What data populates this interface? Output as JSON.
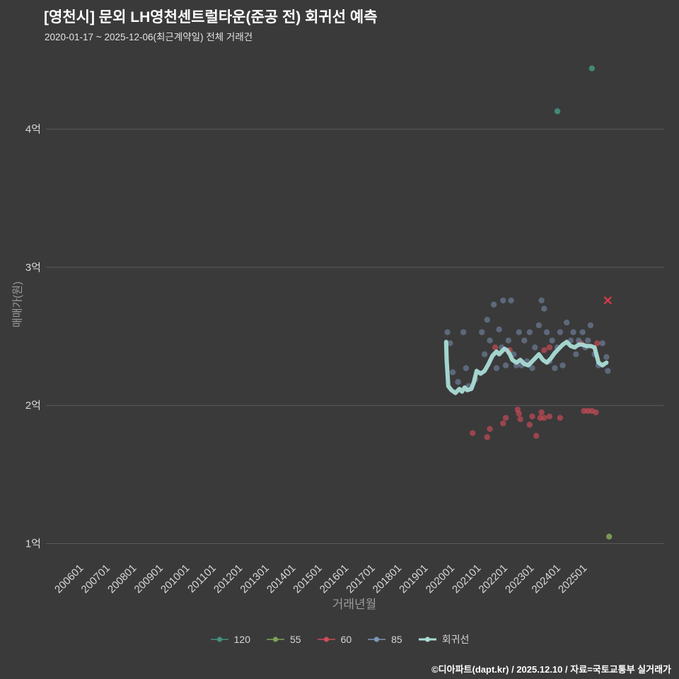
{
  "header": {
    "title": "[영천시] 문외 LH영천센트럴타운(준공 전) 회귀선 예측",
    "subtitle": "2020-01-17 ~ 2025-12-06(최근계약일) 전체 거래건"
  },
  "footer": {
    "credit": "©디아파트(dapt.kr) / 2025.12.10 / 자료=국토교통부 실거래가"
  },
  "colors": {
    "background": "#3a3a3a",
    "grid": "#5a5a5a",
    "tick_label": "#d9d9d9",
    "axis_label": "#9b9b9b",
    "title_text": "#ffffff"
  },
  "chart_data": {
    "type": "scatter",
    "title": "[영천시] 문외 LH영천센트럴타운(준공 전) 회귀선 예측",
    "xlabel": "거래년월",
    "ylabel": "매매가(원)",
    "y_unit": "억원",
    "xlim": [
      2004.7,
      2028.0
    ],
    "ylim": [
      0.9,
      4.5
    ],
    "grid": "horizontal",
    "legend_position": "bottom-center",
    "y_ticks": [
      {
        "value": 1,
        "label": "1억"
      },
      {
        "value": 2,
        "label": "2억"
      },
      {
        "value": 3,
        "label": "3억"
      },
      {
        "value": 4,
        "label": "4억"
      }
    ],
    "x_ticks": [
      {
        "value": 2006,
        "label": "200601"
      },
      {
        "value": 2007,
        "label": "200701"
      },
      {
        "value": 2008,
        "label": "200801"
      },
      {
        "value": 2009,
        "label": "200901"
      },
      {
        "value": 2010,
        "label": "201001"
      },
      {
        "value": 2011,
        "label": "201101"
      },
      {
        "value": 2012,
        "label": "201201"
      },
      {
        "value": 2013,
        "label": "201301"
      },
      {
        "value": 2014,
        "label": "201401"
      },
      {
        "value": 2015,
        "label": "201501"
      },
      {
        "value": 2016,
        "label": "201601"
      },
      {
        "value": 2017,
        "label": "201701"
      },
      {
        "value": 2018,
        "label": "201801"
      },
      {
        "value": 2019,
        "label": "201901"
      },
      {
        "value": 2020,
        "label": "202001"
      },
      {
        "value": 2021,
        "label": "202101"
      },
      {
        "value": 2022,
        "label": "202201"
      },
      {
        "value": 2023,
        "label": "202301"
      },
      {
        "value": 2024,
        "label": "202401"
      },
      {
        "value": 2025,
        "label": "202501"
      }
    ],
    "series": [
      {
        "name": "120",
        "type": "scatter",
        "color": "#459180",
        "opacity": 0.9,
        "points": [
          [
            2024.0,
            4.13
          ],
          [
            2025.3,
            4.44
          ]
        ]
      },
      {
        "name": "55",
        "type": "scatter",
        "color": "#7ea257",
        "opacity": 0.9,
        "points": [
          [
            2025.95,
            1.05
          ]
        ]
      },
      {
        "name": "60",
        "type": "scatter",
        "color": "#d04b58",
        "opacity": 0.65,
        "points": [
          [
            2020.8,
            1.8
          ],
          [
            2021.35,
            1.77
          ],
          [
            2021.45,
            1.83
          ],
          [
            2021.95,
            1.87
          ],
          [
            2022.05,
            1.91
          ],
          [
            2022.5,
            1.97
          ],
          [
            2022.55,
            1.94
          ],
          [
            2022.6,
            1.9
          ],
          [
            2022.95,
            1.86
          ],
          [
            2023.05,
            1.92
          ],
          [
            2023.2,
            1.78
          ],
          [
            2023.35,
            1.91
          ],
          [
            2023.4,
            1.95
          ],
          [
            2023.5,
            1.91
          ],
          [
            2023.7,
            1.92
          ],
          [
            2024.1,
            1.91
          ],
          [
            2025.0,
            1.96
          ],
          [
            2025.15,
            1.96
          ],
          [
            2025.3,
            1.96
          ],
          [
            2025.45,
            1.95
          ],
          [
            2021.65,
            2.42
          ],
          [
            2022.2,
            2.4
          ],
          [
            2023.5,
            2.4
          ],
          [
            2023.7,
            2.42
          ],
          [
            2024.9,
            2.45
          ],
          [
            2025.5,
            2.45
          ]
        ]
      },
      {
        "name": "85",
        "type": "scatter",
        "color": "#8095bb",
        "opacity": 0.5,
        "points": [
          [
            2019.85,
            2.53
          ],
          [
            2019.95,
            2.45
          ],
          [
            2020.05,
            2.24
          ],
          [
            2020.25,
            2.17
          ],
          [
            2020.45,
            2.53
          ],
          [
            2020.55,
            2.27
          ],
          [
            2020.65,
            2.14
          ],
          [
            2020.9,
            2.19
          ],
          [
            2021.15,
            2.53
          ],
          [
            2021.25,
            2.37
          ],
          [
            2021.35,
            2.62
          ],
          [
            2021.45,
            2.47
          ],
          [
            2021.6,
            2.73
          ],
          [
            2021.7,
            2.27
          ],
          [
            2021.8,
            2.55
          ],
          [
            2021.9,
            2.42
          ],
          [
            2021.95,
            2.76
          ],
          [
            2022.05,
            2.29
          ],
          [
            2022.15,
            2.47
          ],
          [
            2022.25,
            2.76
          ],
          [
            2022.35,
            2.37
          ],
          [
            2022.45,
            2.29
          ],
          [
            2022.55,
            2.53
          ],
          [
            2022.65,
            2.29
          ],
          [
            2022.75,
            2.47
          ],
          [
            2022.85,
            2.32
          ],
          [
            2022.95,
            2.53
          ],
          [
            2023.05,
            2.27
          ],
          [
            2023.15,
            2.42
          ],
          [
            2023.3,
            2.58
          ],
          [
            2023.4,
            2.76
          ],
          [
            2023.5,
            2.7
          ],
          [
            2023.6,
            2.53
          ],
          [
            2023.7,
            2.32
          ],
          [
            2023.8,
            2.47
          ],
          [
            2023.9,
            2.27
          ],
          [
            2024.0,
            2.42
          ],
          [
            2024.1,
            2.53
          ],
          [
            2024.2,
            2.29
          ],
          [
            2024.35,
            2.6
          ],
          [
            2024.5,
            2.47
          ],
          [
            2024.6,
            2.53
          ],
          [
            2024.7,
            2.37
          ],
          [
            2024.8,
            2.47
          ],
          [
            2024.95,
            2.53
          ],
          [
            2025.05,
            2.42
          ],
          [
            2025.15,
            2.47
          ],
          [
            2025.25,
            2.58
          ],
          [
            2025.4,
            2.37
          ],
          [
            2025.55,
            2.29
          ],
          [
            2025.7,
            2.45
          ],
          [
            2025.85,
            2.35
          ],
          [
            2025.9,
            2.25
          ]
        ]
      },
      {
        "name": "회귀선",
        "type": "line",
        "color": "#aadcd6",
        "opacity": 0.95,
        "points": [
          [
            2019.8,
            2.46
          ],
          [
            2019.82,
            2.33
          ],
          [
            2019.88,
            2.14
          ],
          [
            2020.0,
            2.11
          ],
          [
            2020.15,
            2.09
          ],
          [
            2020.3,
            2.12
          ],
          [
            2020.4,
            2.1
          ],
          [
            2020.5,
            2.13
          ],
          [
            2020.6,
            2.11
          ],
          [
            2020.75,
            2.12
          ],
          [
            2020.85,
            2.17
          ],
          [
            2020.95,
            2.25
          ],
          [
            2021.1,
            2.23
          ],
          [
            2021.25,
            2.25
          ],
          [
            2021.4,
            2.3
          ],
          [
            2021.55,
            2.36
          ],
          [
            2021.7,
            2.39
          ],
          [
            2021.8,
            2.37
          ],
          [
            2021.9,
            2.39
          ],
          [
            2022.0,
            2.41
          ],
          [
            2022.1,
            2.4
          ],
          [
            2022.2,
            2.37
          ],
          [
            2022.3,
            2.33
          ],
          [
            2022.45,
            2.31
          ],
          [
            2022.6,
            2.33
          ],
          [
            2022.75,
            2.3
          ],
          [
            2022.9,
            2.29
          ],
          [
            2023.0,
            2.31
          ],
          [
            2023.15,
            2.34
          ],
          [
            2023.3,
            2.37
          ],
          [
            2023.45,
            2.33
          ],
          [
            2023.6,
            2.31
          ],
          [
            2023.75,
            2.34
          ],
          [
            2023.9,
            2.38
          ],
          [
            2024.05,
            2.41
          ],
          [
            2024.2,
            2.44
          ],
          [
            2024.35,
            2.46
          ],
          [
            2024.5,
            2.43
          ],
          [
            2024.65,
            2.42
          ],
          [
            2024.8,
            2.44
          ],
          [
            2024.95,
            2.44
          ],
          [
            2025.1,
            2.43
          ],
          [
            2025.25,
            2.43
          ],
          [
            2025.4,
            2.42
          ],
          [
            2025.55,
            2.31
          ],
          [
            2025.7,
            2.29
          ],
          [
            2025.85,
            2.31
          ]
        ]
      }
    ],
    "markers": [
      {
        "shape": "x",
        "color": "#e03a4a",
        "x": 2025.9,
        "y": 2.76
      }
    ]
  }
}
